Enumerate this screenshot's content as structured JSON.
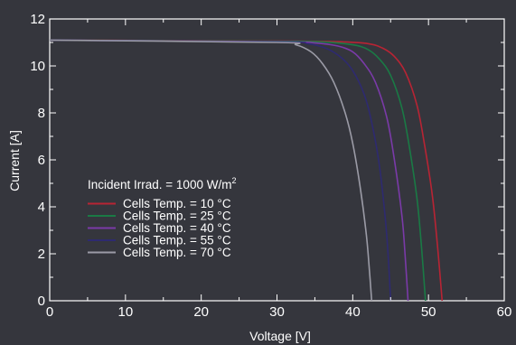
{
  "chart_data": {
    "type": "line",
    "title": "",
    "xlabel": "Voltage [V]",
    "ylabel": "Current [A]",
    "xlim": [
      0,
      60
    ],
    "ylim": [
      0,
      12
    ],
    "xticks": [
      0,
      10,
      20,
      30,
      40,
      50,
      60
    ],
    "yticks": [
      0,
      2,
      4,
      6,
      8,
      10,
      12
    ],
    "grid": false,
    "legend_position": "lower-left",
    "annotation": {
      "text": "Incident Irrad. = 1000 W/m",
      "superscript": "2"
    },
    "series": [
      {
        "name": "Cells Temp. =  10 °C",
        "color": "#b82434",
        "isc": 11.1,
        "voc": 51.8,
        "points": [
          [
            0,
            11.1
          ],
          [
            30,
            11.06
          ],
          [
            38,
            11.03
          ],
          [
            42,
            10.95
          ],
          [
            44,
            10.75
          ],
          [
            45.5,
            10.4
          ],
          [
            47,
            9.7
          ],
          [
            48.5,
            8.3
          ],
          [
            49.5,
            6.6
          ],
          [
            50.5,
            4.5
          ],
          [
            51.2,
            2.3
          ],
          [
            51.8,
            0
          ]
        ]
      },
      {
        "name": "Cells Temp. =  25 °C",
        "color": "#1a7a45",
        "isc": 11.1,
        "voc": 49.6,
        "points": [
          [
            0,
            11.1
          ],
          [
            30,
            11.05
          ],
          [
            36,
            11.02
          ],
          [
            40,
            10.9
          ],
          [
            42,
            10.7
          ],
          [
            43.5,
            10.3
          ],
          [
            45,
            9.6
          ],
          [
            46.5,
            8.2
          ],
          [
            47.5,
            6.5
          ],
          [
            48.5,
            4.3
          ],
          [
            49.1,
            2.2
          ],
          [
            49.6,
            0
          ]
        ]
      },
      {
        "name": "Cells Temp. =  40 °C",
        "color": "#7a3aa8",
        "isc": 11.1,
        "voc": 47.3,
        "points": [
          [
            0,
            11.1
          ],
          [
            30,
            11.03
          ],
          [
            35,
            10.98
          ],
          [
            38,
            10.85
          ],
          [
            40,
            10.6
          ],
          [
            41.5,
            10.1
          ],
          [
            43,
            9.3
          ],
          [
            44.5,
            7.8
          ],
          [
            45.5,
            6.0
          ],
          [
            46.5,
            3.6
          ],
          [
            46.9,
            2.0
          ],
          [
            47.3,
            0
          ]
        ]
      },
      {
        "name": "Cells Temp. =  55 °C",
        "color": "#2e2a70",
        "isc": 11.1,
        "voc": 45.0,
        "points": [
          [
            0,
            11.1
          ],
          [
            30,
            11.02
          ],
          [
            34,
            10.95
          ],
          [
            36.5,
            10.75
          ],
          [
            38.5,
            10.35
          ],
          [
            40,
            9.8
          ],
          [
            41.5,
            8.8
          ],
          [
            42.5,
            7.6
          ],
          [
            43.5,
            5.8
          ],
          [
            44.3,
            3.5
          ],
          [
            44.7,
            1.8
          ],
          [
            45.0,
            0
          ]
        ]
      },
      {
        "name": "Cells Temp. =  70 °C",
        "color": "#9b9ba6",
        "isc": 11.1,
        "voc": 42.5,
        "points": [
          [
            0,
            11.1
          ],
          [
            30,
            11.0
          ],
          [
            32.5,
            10.9
          ],
          [
            34.5,
            10.6
          ],
          [
            36,
            10.1
          ],
          [
            37.5,
            9.3
          ],
          [
            39,
            8.0
          ],
          [
            40,
            6.7
          ],
          [
            41,
            4.8
          ],
          [
            41.8,
            2.8
          ],
          [
            42.2,
            1.3
          ],
          [
            42.5,
            0
          ]
        ]
      }
    ]
  }
}
